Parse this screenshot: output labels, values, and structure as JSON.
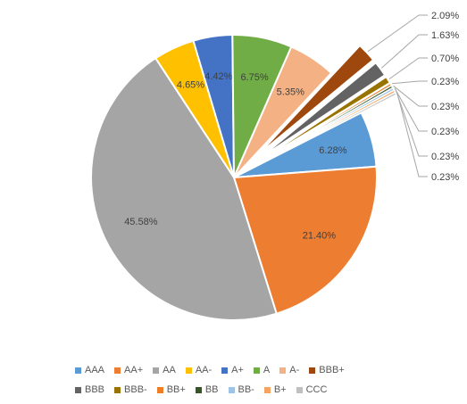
{
  "chart_data": {
    "type": "pie",
    "slices": [
      {
        "label": "AAA",
        "value": 6.28,
        "value_label": "6.28%",
        "color": "#5B9BD5",
        "exploded": false
      },
      {
        "label": "AA+",
        "value": 21.4,
        "value_label": "21.40%",
        "color": "#ED7D31",
        "exploded": false
      },
      {
        "label": "AA",
        "value": 45.58,
        "value_label": "45.58%",
        "color": "#A5A5A5",
        "exploded": false
      },
      {
        "label": "AA-",
        "value": 4.65,
        "value_label": "4.65%",
        "color": "#FFC000",
        "exploded": false
      },
      {
        "label": "A+",
        "value": 4.42,
        "value_label": "4.42%",
        "color": "#4472C4",
        "exploded": false
      },
      {
        "label": "A",
        "value": 6.75,
        "value_label": "6.75%",
        "color": "#70AD47",
        "exploded": false
      },
      {
        "label": "A-",
        "value": 5.35,
        "value_label": "5.35%",
        "color": "#F4B183",
        "exploded": false
      },
      {
        "label": "BBB+",
        "value": 2.09,
        "value_label": "2.09%",
        "color": "#9E480E",
        "exploded": true
      },
      {
        "label": "BBB",
        "value": 1.63,
        "value_label": "1.63%",
        "color": "#636363",
        "exploded": true
      },
      {
        "label": "BBB-",
        "value": 0.7,
        "value_label": "0.70%",
        "color": "#997300",
        "exploded": true
      },
      {
        "label": "BB+",
        "value": 0.23,
        "value_label": "0.23%",
        "color": "#F07E26",
        "exploded": true
      },
      {
        "label": "BB",
        "value": 0.23,
        "value_label": "0.23%",
        "color": "#375623",
        "exploded": true
      },
      {
        "label": "BB-",
        "value": 0.23,
        "value_label": "0.23%",
        "color": "#9DC3E6",
        "exploded": true
      },
      {
        "label": "B+",
        "value": 0.23,
        "value_label": "0.23%",
        "color": "#F4A460",
        "exploded": true
      },
      {
        "label": "CCC",
        "value": 0.23,
        "value_label": "0.23%",
        "color": "#C0C0C0",
        "exploded": true
      }
    ],
    "legend_position": "bottom",
    "legend_rows": [
      [
        "AAA",
        "AA+",
        "AA",
        "AA-",
        "A+",
        "A",
        "A-",
        "BBB+"
      ],
      [
        "BBB",
        "BBB-",
        "BB+",
        "BB",
        "BB-",
        "B+",
        "CCC"
      ]
    ]
  }
}
